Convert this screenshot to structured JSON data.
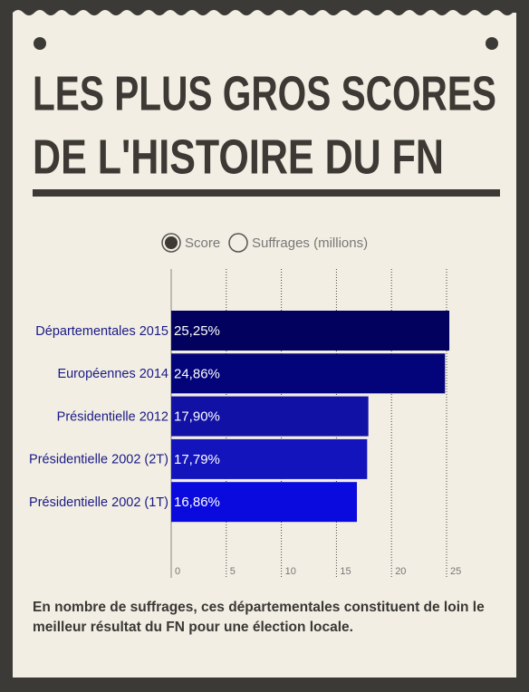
{
  "chart_data": {
    "type": "bar",
    "title": [
      "LES PLUS GROS SCORES",
      "DE L'HISTOIRE DU FN"
    ],
    "toggle": [
      "Score",
      "Suffrages (millions)"
    ],
    "categories": [
      "Départementales 2015",
      "Européennes 2014",
      "Présidentielle 2012",
      "Présidentielle 2002 (2T)",
      "Présidentielle 2002 (1T)"
    ],
    "values": [
      25.25,
      24.86,
      17.9,
      17.79,
      16.86
    ],
    "value_labels": [
      "25,25%",
      "24,86%",
      "17,90%",
      "17,79%",
      "16,86%"
    ],
    "colors": [
      "#02025e",
      "#03037a",
      "#1111a6",
      "#1414bd",
      "#0a0ade"
    ],
    "xlim": [
      0,
      25
    ],
    "xticks": [
      0,
      5,
      10,
      15,
      20,
      25
    ],
    "grid": true,
    "caption": "En nombre de suffrages, ces départementales constituent de loin le meilleur résultat du FN pour une élection locale."
  }
}
